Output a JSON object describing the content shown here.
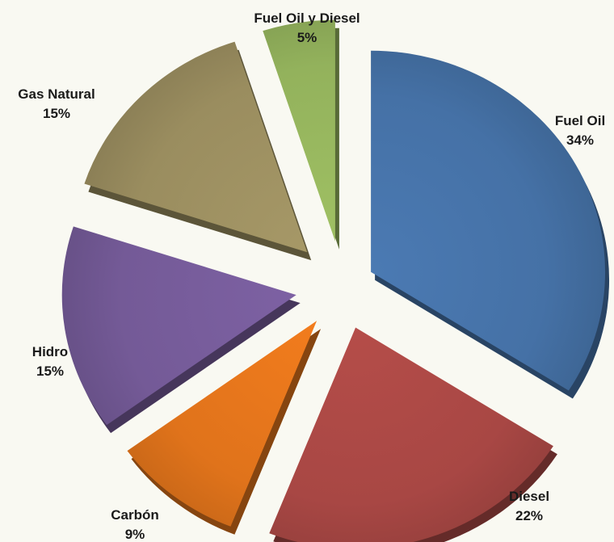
{
  "chart_data": {
    "type": "pie",
    "title": "",
    "grid": false,
    "legend": "none",
    "slices": [
      {
        "category": "Fuel Oil",
        "value": 34,
        "label": "34%",
        "color": "#4571a6"
      },
      {
        "category": "Diesel",
        "value": 22,
        "label": "22%",
        "color": "#a84744"
      },
      {
        "category": "Carbón",
        "value": 9,
        "label": "9%",
        "color": "#e0731b"
      },
      {
        "category": "Hidro",
        "value": 15,
        "label": "15%",
        "color": "#745a97"
      },
      {
        "category": "Gas Natural",
        "value": 15,
        "label": "15%",
        "color": "#9a8d5f"
      },
      {
        "category": "Fuel Oil y Diesel",
        "value": 5,
        "label": "5%",
        "color": "#93b25c"
      }
    ]
  }
}
